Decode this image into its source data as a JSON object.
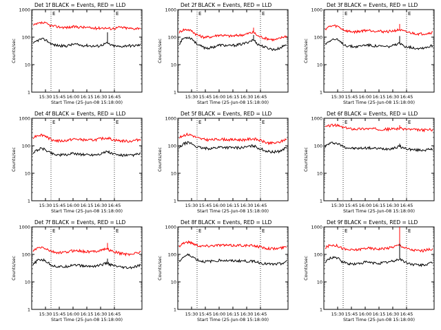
{
  "chart_data": [
    {
      "type": "line",
      "title": "Det 1f BLACK = Events, RED = LLD",
      "xlabel": "Start Time (25-Jun-08 15:18:00)",
      "ylabel": "Counts/sec",
      "x_ticks": [
        "15:30",
        "15:45",
        "16:00",
        "16:15",
        "16:30",
        "16:45"
      ],
      "y_ticks": [
        "1",
        "10",
        "100",
        "1000"
      ],
      "ylim": [
        1,
        1000
      ],
      "yscale": "log",
      "grid": "dotted vertical markers",
      "marker_labels": [
        "E",
        "E"
      ],
      "series": [
        {
          "color": "#ff0000",
          "values": [
            260,
            300,
            330,
            320,
            270,
            250,
            240,
            230,
            225,
            230,
            240,
            235,
            230,
            225,
            215,
            210,
            215,
            220,
            210,
            205,
            215,
            230,
            220,
            210,
            205,
            210,
            220
          ]
        },
        {
          "color": "#000000",
          "values": [
            55,
            75,
            85,
            80,
            62,
            52,
            50,
            48,
            48,
            52,
            56,
            52,
            50,
            50,
            48,
            47,
            48,
            55,
            60,
            50,
            47,
            45,
            48,
            50,
            48,
            50,
            52
          ],
          "spike": {
            "index": 18,
            "value": 150
          }
        }
      ]
    },
    {
      "type": "line",
      "title": "Det 2f BLACK = Events, RED = LLD",
      "xlabel": "Start Time (25-Jun-08 15:18:00)",
      "ylabel": "Counts/sec",
      "x_ticks": [
        "15:30",
        "15:45",
        "16:00",
        "16:15",
        "16:30",
        "16:45"
      ],
      "y_ticks": [
        "1",
        "10",
        "100",
        "1000"
      ],
      "ylim": [
        1,
        1000
      ],
      "yscale": "log",
      "grid": "dotted vertical markers",
      "marker_labels": [
        "E",
        "E"
      ],
      "series": [
        {
          "color": "#ff0000",
          "values": [
            150,
            185,
            190,
            170,
            130,
            110,
            100,
            100,
            105,
            115,
            120,
            115,
            110,
            110,
            115,
            120,
            125,
            140,
            150,
            110,
            100,
            90,
            85,
            80,
            85,
            100,
            110
          ],
          "spike": {
            "index": 18,
            "value": 220
          }
        },
        {
          "color": "#000000",
          "values": [
            55,
            90,
            100,
            90,
            62,
            48,
            42,
            40,
            42,
            48,
            52,
            50,
            48,
            50,
            52,
            55,
            60,
            70,
            80,
            55,
            48,
            42,
            38,
            35,
            38,
            45,
            55
          ],
          "spike": {
            "index": 18,
            "value": 120
          }
        }
      ]
    },
    {
      "type": "line",
      "title": "Det 3f BLACK = Events, RED = LLD",
      "xlabel": "Start Time (25-Jun-08 15:18:00)",
      "ylabel": "Counts/sec",
      "x_ticks": [
        "15:30",
        "15:45",
        "16:00",
        "16:15",
        "16:30",
        "16:45"
      ],
      "y_ticks": [
        "1",
        "10",
        "100",
        "1000"
      ],
      "ylim": [
        1,
        1000
      ],
      "yscale": "log",
      "grid": "dotted vertical markers",
      "marker_labels": [
        "E",
        "E"
      ],
      "series": [
        {
          "color": "#ff0000",
          "values": [
            200,
            240,
            260,
            245,
            200,
            170,
            160,
            155,
            160,
            170,
            180,
            175,
            170,
            165,
            160,
            160,
            165,
            175,
            185,
            160,
            150,
            140,
            135,
            130,
            135,
            140,
            150
          ],
          "spike": {
            "index": 18,
            "value": 300
          }
        },
        {
          "color": "#000000",
          "values": [
            55,
            75,
            85,
            78,
            60,
            50,
            47,
            45,
            46,
            50,
            53,
            50,
            48,
            47,
            46,
            45,
            47,
            52,
            58,
            48,
            45,
            42,
            40,
            40,
            42,
            45,
            50
          ],
          "spike": {
            "index": 18,
            "value": 110
          }
        }
      ]
    },
    {
      "type": "line",
      "title": "Det 4f BLACK = Events, RED = LLD",
      "xlabel": "Start Time (25-Jun-08 15:18:00)",
      "ylabel": "Counts/sec",
      "x_ticks": [
        "15:30",
        "15:45",
        "16:00",
        "16:15",
        "16:30",
        "16:45"
      ],
      "y_ticks": [
        "1",
        "10",
        "100",
        "1000"
      ],
      "ylim": [
        1,
        1000
      ],
      "yscale": "log",
      "grid": "dotted vertical markers",
      "marker_labels": [
        "E",
        "E"
      ],
      "series": [
        {
          "color": "#ff0000",
          "values": [
            200,
            240,
            250,
            230,
            180,
            160,
            150,
            150,
            155,
            165,
            175,
            170,
            165,
            160,
            160,
            165,
            175,
            185,
            195,
            170,
            160,
            150,
            150,
            145,
            150,
            160,
            170
          ]
        },
        {
          "color": "#000000",
          "values": [
            55,
            70,
            80,
            72,
            58,
            50,
            47,
            46,
            47,
            50,
            53,
            50,
            48,
            48,
            47,
            48,
            50,
            55,
            62,
            52,
            48,
            45,
            45,
            44,
            45,
            48,
            52
          ]
        }
      ]
    },
    {
      "type": "line",
      "title": "Det 5f BLACK = Events, RED = LLD",
      "xlabel": "Start Time (25-Jun-08 15:18:00)",
      "ylabel": "Counts/sec",
      "x_ticks": [
        "15:30",
        "15:45",
        "16:00",
        "16:15",
        "16:30",
        "16:45"
      ],
      "y_ticks": [
        "1",
        "10",
        "100",
        "1000"
      ],
      "ylim": [
        1,
        1000
      ],
      "yscale": "log",
      "grid": "dotted vertical markers",
      "marker_labels": [
        "E",
        "E"
      ],
      "series": [
        {
          "color": "#ff0000",
          "values": [
            190,
            240,
            260,
            245,
            205,
            180,
            170,
            165,
            165,
            170,
            175,
            170,
            168,
            166,
            165,
            165,
            168,
            175,
            180,
            165,
            150,
            130,
            125,
            125,
            130,
            150,
            180
          ]
        },
        {
          "color": "#000000",
          "values": [
            80,
            115,
            130,
            120,
            95,
            85,
            80,
            80,
            82,
            85,
            90,
            88,
            86,
            85,
            85,
            86,
            88,
            95,
            100,
            85,
            75,
            65,
            60,
            60,
            62,
            70,
            90
          ]
        }
      ]
    },
    {
      "type": "line",
      "title": "Det 6f BLACK = Events, RED = LLD",
      "xlabel": "Start Time (25-Jun-08 15:18:00)",
      "ylabel": "Counts/sec",
      "x_ticks": [
        "15:30",
        "15:45",
        "16:00",
        "16:15",
        "16:30",
        "16:45"
      ],
      "y_ticks": [
        "1",
        "10",
        "100",
        "1000"
      ],
      "ylim": [
        1,
        1000
      ],
      "yscale": "log",
      "grid": "dotted vertical markers",
      "marker_labels": [
        "E",
        "E"
      ],
      "series": [
        {
          "color": "#ff0000",
          "values": [
            480,
            540,
            560,
            540,
            480,
            440,
            420,
            410,
            410,
            415,
            420,
            415,
            410,
            405,
            400,
            400,
            405,
            415,
            430,
            410,
            400,
            385,
            380,
            375,
            375,
            380,
            390
          ],
          "spike": {
            "index": 18,
            "value": 560
          }
        },
        {
          "color": "#000000",
          "values": [
            95,
            120,
            130,
            120,
            100,
            88,
            82,
            80,
            80,
            82,
            84,
            82,
            80,
            79,
            78,
            78,
            80,
            85,
            95,
            82,
            77,
            72,
            70,
            70,
            71,
            72,
            75
          ],
          "spike": {
            "index": 18,
            "value": 120
          }
        }
      ]
    },
    {
      "type": "line",
      "title": "Det 7f BLACK = Events, RED = LLD",
      "xlabel": "Start Time (25-Jun-08 15:18:00)",
      "ylabel": "Counts/sec",
      "x_ticks": [
        "15:30",
        "15:45",
        "16:00",
        "16:15",
        "16:30",
        "16:45"
      ],
      "y_ticks": [
        "1",
        "10",
        "100",
        "1000"
      ],
      "ylim": [
        1,
        1000
      ],
      "yscale": "log",
      "grid": "dotted vertical markers",
      "marker_labels": [
        "E",
        "E"
      ],
      "series": [
        {
          "color": "#ff0000",
          "values": [
            130,
            165,
            180,
            165,
            135,
            120,
            115,
            115,
            120,
            130,
            140,
            135,
            130,
            125,
            125,
            130,
            140,
            150,
            160,
            130,
            120,
            110,
            105,
            100,
            105,
            115,
            120
          ],
          "spike": {
            "index": 18,
            "value": 260
          }
        },
        {
          "color": "#000000",
          "values": [
            40,
            60,
            65,
            58,
            45,
            38,
            36,
            35,
            36,
            40,
            43,
            40,
            38,
            37,
            37,
            38,
            40,
            44,
            48,
            40,
            37,
            34,
            33,
            32,
            33,
            36,
            40
          ],
          "spike": {
            "index": 18,
            "value": 70
          }
        }
      ]
    },
    {
      "type": "line",
      "title": "Det 8f BLACK = Events, RED = LLD",
      "xlabel": "Start Time (25-Jun-08 15:18:00)",
      "ylabel": "Counts/sec",
      "x_ticks": [
        "15:30",
        "15:45",
        "16:00",
        "16:15",
        "16:30",
        "16:45"
      ],
      "y_ticks": [
        "1",
        "10",
        "100",
        "1000"
      ],
      "ylim": [
        1,
        1000
      ],
      "yscale": "log",
      "grid": "dotted vertical markers",
      "marker_labels": [
        "E",
        "E"
      ],
      "series": [
        {
          "color": "#ff0000",
          "values": [
            200,
            260,
            280,
            265,
            225,
            205,
            200,
            205,
            210,
            215,
            220,
            215,
            210,
            210,
            215,
            215,
            210,
            205,
            210,
            195,
            180,
            170,
            165,
            160,
            165,
            175,
            190
          ]
        },
        {
          "color": "#000000",
          "values": [
            55,
            80,
            95,
            88,
            68,
            58,
            55,
            55,
            57,
            60,
            62,
            60,
            58,
            58,
            58,
            58,
            57,
            56,
            58,
            52,
            48,
            45,
            44,
            43,
            45,
            48,
            55
          ]
        }
      ]
    },
    {
      "type": "line",
      "title": "Det 9f BLACK = Events, RED = LLD",
      "xlabel": "Start Time (25-Jun-08 15:18:00)",
      "ylabel": "Counts/sec",
      "x_ticks": [
        "15:30",
        "15:45",
        "16:00",
        "16:15",
        "16:30",
        "16:45"
      ],
      "y_ticks": [
        "1",
        "10",
        "100",
        "1000"
      ],
      "ylim": [
        1,
        1000
      ],
      "yscale": "log",
      "grid": "dotted vertical markers",
      "marker_labels": [
        "E",
        "E"
      ],
      "series": [
        {
          "color": "#ff0000",
          "values": [
            170,
            210,
            220,
            205,
            170,
            150,
            145,
            145,
            150,
            160,
            170,
            165,
            160,
            160,
            165,
            170,
            180,
            200,
            220,
            180,
            160,
            145,
            140,
            135,
            140,
            150,
            160
          ],
          "spike": {
            "index": 18,
            "value": 1000
          }
        },
        {
          "color": "#000000",
          "values": [
            50,
            70,
            80,
            72,
            55,
            48,
            45,
            45,
            46,
            50,
            53,
            50,
            48,
            48,
            50,
            52,
            55,
            60,
            70,
            55,
            48,
            44,
            42,
            40,
            42,
            45,
            50
          ],
          "spike": {
            "index": 18,
            "value": 250
          }
        }
      ]
    }
  ]
}
